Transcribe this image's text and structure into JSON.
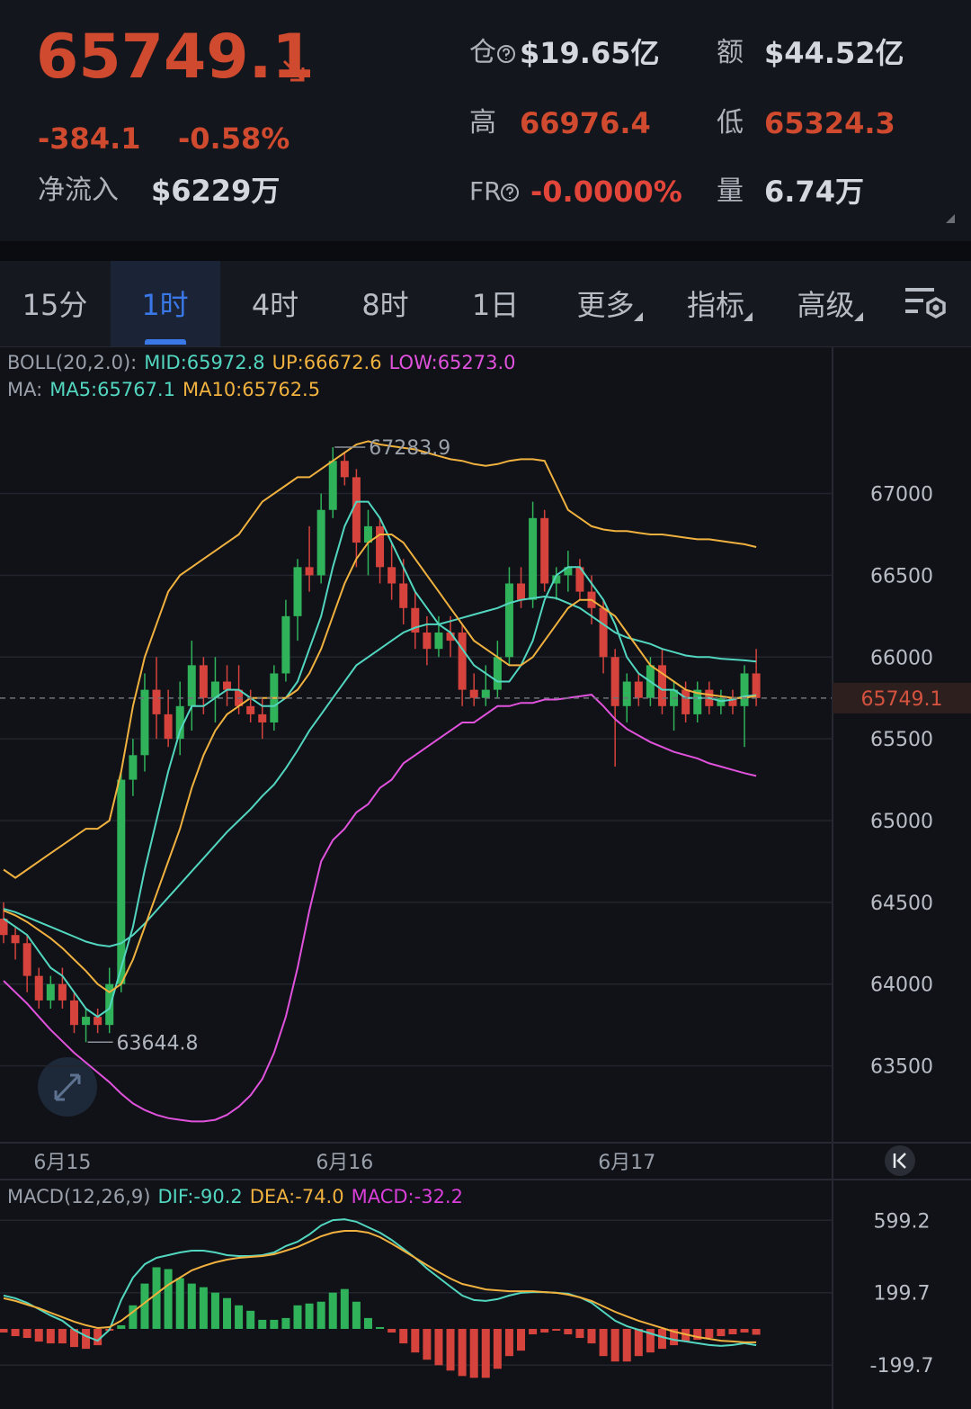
{
  "header": {
    "price": "65749.1",
    "change": "-384.1",
    "change_pct": "-0.58%",
    "net_inflow_label": "净流入",
    "net_inflow": "$6229万",
    "oi_label": "仓",
    "oi": "$19.65亿",
    "turnover_label": "额",
    "turnover": "$44.52亿",
    "high_label": "高",
    "high": "66976.4",
    "low_label": "低",
    "low": "65324.3",
    "fr_label": "FR",
    "fr": "-0.0000%",
    "volume_label": "量",
    "volume": "6.74万"
  },
  "tabs": [
    {
      "label": "15分"
    },
    {
      "label": "1时",
      "selected": true
    },
    {
      "label": "4时"
    },
    {
      "label": "8时"
    },
    {
      "label": "1日"
    },
    {
      "label": "更多",
      "menu": true
    },
    {
      "label": "指标",
      "menu": true
    },
    {
      "label": "高级",
      "menu": true
    }
  ],
  "chart_data": [
    {
      "type": "candlestick",
      "boll_label": "BOLL(20,2.0):",
      "ma_label": "MA:",
      "categories": [
        null,
        null,
        null,
        null,
        null,
        "6月15",
        null,
        null,
        null,
        null,
        null,
        null,
        null,
        null,
        null,
        null,
        null,
        null,
        null,
        null,
        null,
        null,
        null,
        null,
        null,
        null,
        null,
        null,
        null,
        "6月16",
        null,
        null,
        null,
        null,
        null,
        null,
        null,
        null,
        null,
        null,
        null,
        null,
        null,
        null,
        null,
        null,
        null,
        null,
        null,
        null,
        null,
        null,
        null,
        "6月17",
        null,
        null,
        null,
        null,
        null,
        null,
        null,
        null,
        null,
        null,
        null
      ],
      "open": [
        64400,
        64300,
        64250,
        64050,
        63900,
        64000,
        63900,
        63750,
        63800,
        63750,
        64000,
        65250,
        65400,
        65800,
        65650,
        65500,
        65700,
        65950,
        65750,
        65850,
        65800,
        65700,
        65650,
        65600,
        65900,
        66250,
        66550,
        66500,
        66900,
        67200,
        67100,
        66700,
        66800,
        66550,
        66450,
        66300,
        66150,
        66050,
        66150,
        66150,
        65800,
        65750,
        65800,
        66000,
        66450,
        66350,
        66850,
        66450,
        66500,
        66550,
        66400,
        66300,
        66000,
        65700,
        65850,
        65750,
        65950,
        65700,
        65800,
        65650,
        65800,
        65700,
        65750,
        65700,
        65900
      ],
      "high": [
        64500,
        64350,
        64300,
        64100,
        64050,
        64100,
        63950,
        63850,
        63850,
        64100,
        65300,
        65500,
        65900,
        66000,
        65800,
        65850,
        66100,
        66000,
        66000,
        65950,
        65950,
        65800,
        65750,
        65950,
        66350,
        66600,
        66800,
        67000,
        67283.9,
        67250,
        67150,
        66900,
        66850,
        66700,
        66600,
        66400,
        66250,
        66250,
        66250,
        66200,
        65900,
        65950,
        66100,
        66550,
        66550,
        66950,
        66900,
        66550,
        66650,
        66600,
        66500,
        66350,
        66050,
        65900,
        65900,
        66000,
        66050,
        65850,
        65850,
        65850,
        65850,
        65800,
        65800,
        65950,
        66050
      ],
      "low": [
        64250,
        64150,
        63950,
        63850,
        63850,
        63850,
        63700,
        63644.8,
        63700,
        63700,
        63950,
        65150,
        65300,
        65500,
        65450,
        65400,
        65550,
        65650,
        65600,
        65700,
        65650,
        65600,
        65500,
        65550,
        65850,
        66100,
        66400,
        66450,
        66850,
        67050,
        66550,
        66500,
        66450,
        66350,
        66200,
        66050,
        65950,
        66000,
        66000,
        65700,
        65700,
        65700,
        65750,
        65950,
        66300,
        66300,
        66400,
        66350,
        66400,
        66350,
        66200,
        65900,
        65330,
        65600,
        65700,
        65700,
        65650,
        65550,
        65600,
        65600,
        65650,
        65650,
        65650,
        65450,
        65700
      ],
      "close": [
        64300,
        64250,
        64050,
        63900,
        64000,
        63900,
        63750,
        63800,
        63750,
        64000,
        65250,
        65400,
        65800,
        65650,
        65500,
        65700,
        65950,
        65750,
        65850,
        65800,
        65700,
        65650,
        65600,
        65900,
        66250,
        66550,
        66500,
        66900,
        67200,
        67100,
        66700,
        66800,
        66550,
        66450,
        66300,
        66150,
        66050,
        66150,
        66100,
        65800,
        65750,
        65800,
        66000,
        66450,
        66350,
        66850,
        66450,
        66500,
        66550,
        66400,
        66300,
        66000,
        65700,
        65850,
        65750,
        65950,
        65700,
        65800,
        65650,
        65800,
        65700,
        65750,
        65700,
        65900,
        65749.1
      ],
      "up_color": "#2fb25a",
      "down_color": "#d6433c",
      "series": [
        {
          "name": "MID:",
          "last_label": "65972.8",
          "color": "#52d6bf",
          "values": [
            64460,
            64440,
            64410,
            64380,
            64350,
            64320,
            64290,
            64260,
            64240,
            64230,
            64250,
            64300,
            64370,
            64450,
            64530,
            64610,
            64690,
            64770,
            64850,
            64930,
            65000,
            65070,
            65150,
            65220,
            65320,
            65430,
            65550,
            65650,
            65750,
            65850,
            65950,
            66000,
            66050,
            66100,
            66150,
            66180,
            66200,
            66200,
            66220,
            66240,
            66260,
            66280,
            66300,
            66330,
            66350,
            66360,
            66370,
            66360,
            66330,
            66300,
            66250,
            66200,
            66150,
            66120,
            66100,
            66080,
            66050,
            66030,
            66010,
            66000,
            66000,
            65990,
            65985,
            65980,
            65972.8
          ]
        },
        {
          "name": "UP:",
          "last_label": "66672.6",
          "color": "#f0b13f",
          "values": [
            64700,
            64650,
            64700,
            64750,
            64800,
            64850,
            64900,
            64950,
            64950,
            65000,
            65300,
            65700,
            66000,
            66200,
            66400,
            66500,
            66550,
            66600,
            66650,
            66700,
            66750,
            66850,
            66950,
            67000,
            67050,
            67100,
            67100,
            67150,
            67200,
            67250,
            67300,
            67320,
            67300,
            67290,
            67280,
            67270,
            67250,
            67230,
            67210,
            67200,
            67180,
            67170,
            67180,
            67200,
            67210,
            67210,
            67200,
            67050,
            66900,
            66850,
            66800,
            66780,
            66770,
            66770,
            66760,
            66750,
            66750,
            66740,
            66730,
            66720,
            66720,
            66710,
            66700,
            66690,
            66672.6
          ]
        },
        {
          "name": "LOW:",
          "last_label": "65273.0",
          "color": "#e052dc",
          "values": [
            64020,
            63950,
            63880,
            63800,
            63720,
            63650,
            63580,
            63520,
            63460,
            63400,
            63330,
            63270,
            63230,
            63200,
            63180,
            63170,
            63160,
            63160,
            63170,
            63200,
            63250,
            63320,
            63420,
            63580,
            63800,
            64100,
            64450,
            64750,
            64880,
            64950,
            65050,
            65100,
            65200,
            65250,
            65350,
            65400,
            65450,
            65500,
            65550,
            65600,
            65600,
            65650,
            65700,
            65700,
            65720,
            65720,
            65740,
            65740,
            65750,
            65760,
            65770,
            65700,
            65620,
            65560,
            65520,
            65480,
            65450,
            65420,
            65400,
            65380,
            65350,
            65330,
            65310,
            65290,
            65273.0
          ]
        },
        {
          "name": "MA5:",
          "last_label": "65767.1",
          "color": "#52d6bf",
          "values": [
            64400,
            64350,
            64300,
            64200,
            64100,
            64050,
            63950,
            63850,
            63800,
            63850,
            64100,
            64350,
            64700,
            65000,
            65300,
            65550,
            65700,
            65700,
            65750,
            65800,
            65800,
            65750,
            65700,
            65700,
            65750,
            65850,
            66050,
            66250,
            66550,
            66800,
            66950,
            66950,
            66850,
            66700,
            66550,
            66400,
            66300,
            66200,
            66150,
            66050,
            65950,
            65900,
            65850,
            65850,
            65950,
            66100,
            66350,
            66500,
            66550,
            66550,
            66450,
            66350,
            66200,
            66000,
            65900,
            65850,
            65800,
            65800,
            65750,
            65750,
            65750,
            65730,
            65740,
            65760,
            65767.1
          ]
        },
        {
          "name": "MA10:",
          "last_label": "65762.5",
          "color": "#f0b13f",
          "values": [
            64450,
            64420,
            64380,
            64330,
            64280,
            64220,
            64150,
            64080,
            64000,
            63950,
            64000,
            64150,
            64350,
            64550,
            64750,
            64950,
            65200,
            65400,
            65550,
            65650,
            65700,
            65750,
            65750,
            65750,
            65750,
            65800,
            65900,
            66050,
            66250,
            66450,
            66600,
            66700,
            66750,
            66750,
            66700,
            66600,
            66500,
            66400,
            66300,
            66200,
            66100,
            66050,
            66000,
            65950,
            65950,
            66000,
            66100,
            66200,
            66300,
            66350,
            66350,
            66300,
            66250,
            66150,
            66050,
            65950,
            65900,
            65850,
            65800,
            65780,
            65770,
            65760,
            65750,
            65750,
            65762.5
          ]
        }
      ],
      "ylim": [
        63030,
        67900
      ],
      "yticks": [
        63500,
        64000,
        64500,
        65000,
        65500,
        66000,
        66500,
        67000
      ],
      "grid": true
    },
    {
      "type": "macd",
      "title": "MACD(12,26,9)",
      "series": [
        {
          "name": "DIF:",
          "last_label": "-90.2",
          "color": "#52d6bf",
          "values": [
            184,
            169,
            144,
            109,
            74,
            45,
            -5,
            -40,
            -65,
            -5,
            159,
            283,
            357,
            392,
            407,
            422,
            432,
            432,
            422,
            407,
            402,
            402,
            407,
            422,
            457,
            481,
            521,
            571,
            600,
            605,
            591,
            561,
            531,
            491,
            442,
            392,
            333,
            283,
            233,
            184,
            159,
            154,
            164,
            184,
            199,
            203,
            203,
            199,
            194,
            174,
            144,
            94,
            45,
            15,
            -5,
            -25,
            -45,
            -60,
            -69,
            -79,
            -89,
            -94,
            -89,
            -79,
            -90.2
          ]
        },
        {
          "name": "DEA:",
          "last_label": "-74.0",
          "color": "#f0b13f",
          "values": [
            169,
            154,
            134,
            114,
            89,
            65,
            40,
            20,
            5,
            10,
            45,
            94,
            144,
            194,
            243,
            283,
            323,
            347,
            367,
            382,
            392,
            397,
            402,
            412,
            432,
            452,
            481,
            511,
            531,
            541,
            541,
            531,
            506,
            471,
            432,
            392,
            352,
            313,
            278,
            248,
            233,
            218,
            213,
            208,
            208,
            208,
            203,
            199,
            189,
            174,
            154,
            124,
            94,
            69,
            45,
            25,
            5,
            -15,
            -30,
            -45,
            -55,
            -65,
            -69,
            -74,
            -74.0
          ]
        },
        {
          "name": "MACD:",
          "last_label": "-32.2",
          "color": "#d93fd9",
          "style": "bar",
          "up_color": "#2fb25a",
          "down_color": "#d6433c",
          "values": [
            -20,
            -40,
            -50,
            -70,
            -80,
            -80,
            -100,
            -110,
            -90,
            -10,
            20,
            130,
            250,
            340,
            330,
            280,
            250,
            230,
            200,
            170,
            130,
            100,
            50,
            50,
            60,
            130,
            140,
            150,
            200,
            220,
            150,
            60,
            10,
            -20,
            -80,
            -130,
            -170,
            -200,
            -230,
            -260,
            -270,
            -270,
            -220,
            -150,
            -120,
            -30,
            -20,
            -10,
            -30,
            -50,
            -80,
            -150,
            -180,
            -180,
            -150,
            -130,
            -110,
            -90,
            -70,
            -60,
            -50,
            -40,
            -30,
            -20,
            -32.2
          ]
        }
      ],
      "ylim": [
        -442,
        819
      ],
      "yticks": [
        -199.7,
        199.7,
        599.2
      ],
      "grid": true
    }
  ]
}
